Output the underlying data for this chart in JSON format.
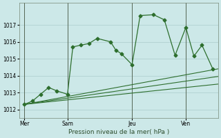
{
  "background_color": "#cce8e8",
  "grid_color": "#aacccc",
  "line_color": "#2d6e2d",
  "xlabel": "Pression niveau de la mer( hPa )",
  "ylim": [
    1011.5,
    1018.3
  ],
  "yticks": [
    1012,
    1013,
    1014,
    1015,
    1016,
    1017
  ],
  "xtick_labels": [
    "Mer",
    "Sam",
    "Jeu",
    "Ven"
  ],
  "xtick_positions": [
    0,
    16,
    40,
    60
  ],
  "vline_positions": [
    0,
    16,
    40,
    60
  ],
  "xlim": [
    -2,
    72
  ],
  "series": [
    {
      "x": [
        0,
        3,
        6,
        9,
        12,
        16,
        18,
        21,
        24,
        27,
        32,
        34,
        36,
        40,
        43,
        48,
        52,
        56,
        60,
        63,
        66,
        70
      ],
      "y": [
        1012.3,
        1012.5,
        1012.9,
        1013.3,
        1013.1,
        1012.9,
        1015.7,
        1015.8,
        1015.9,
        1016.2,
        1016.0,
        1015.5,
        1015.3,
        1014.65,
        1017.55,
        1017.6,
        1017.3,
        1015.2,
        1016.85,
        1015.15,
        1015.8,
        1014.4
      ],
      "marker": "D",
      "markersize": 2.5
    },
    {
      "x": [
        0,
        72
      ],
      "y": [
        1012.3,
        1014.4
      ],
      "marker": null
    },
    {
      "x": [
        0,
        72
      ],
      "y": [
        1012.3,
        1013.95
      ],
      "marker": null
    },
    {
      "x": [
        0,
        72
      ],
      "y": [
        1012.3,
        1013.5
      ],
      "marker": null
    }
  ]
}
